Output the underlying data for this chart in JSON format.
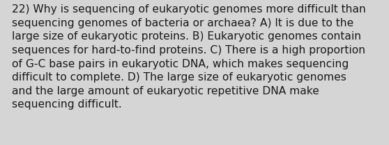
{
  "lines": [
    "22) Why is sequencing of eukaryotic genomes more difficult than",
    "sequencing genomes of bacteria or archaea? A) It is due to the",
    "large size of eukaryotic proteins. B) Eukaryotic genomes contain",
    "sequences for hard-to-find proteins. C) There is a high proportion",
    "of G-C base pairs in eukaryotic DNA, which makes sequencing",
    "difficult to complete. D) The large size of eukaryotic genomes",
    "and the large amount of eukaryotic repetitive DNA make",
    "sequencing difficult."
  ],
  "background_color": "#d5d5d5",
  "text_color": "#1a1a1a",
  "font_size": 11.2,
  "fig_width": 5.58,
  "fig_height": 2.09,
  "dpi": 100
}
